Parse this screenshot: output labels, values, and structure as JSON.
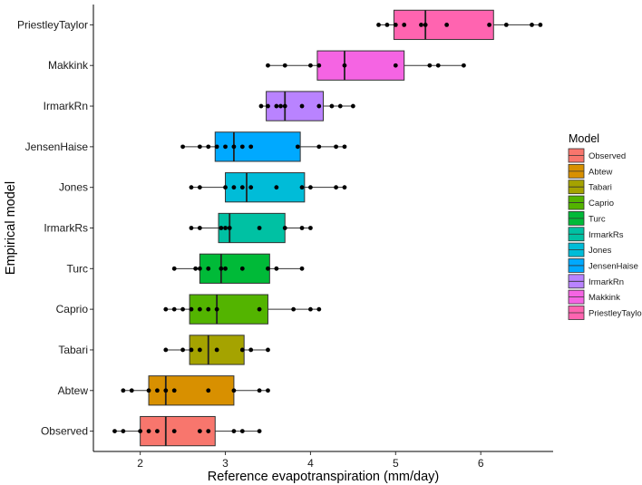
{
  "chart_data": {
    "type": "boxplot",
    "title": "",
    "xlabel": "Reference evapotranspiration (mm/day)",
    "ylabel": "Empirical model",
    "xlim": [
      1.45,
      6.85
    ],
    "x_ticks": [
      2,
      3,
      4,
      5,
      6
    ],
    "grid": false,
    "legend": {
      "title": "Model",
      "position": "right"
    },
    "categories": [
      "PriestleyTaylor",
      "Makkink",
      "IrmarkRn",
      "JensenHaise",
      "Jones",
      "IrmarkRs",
      "Turc",
      "Caprio",
      "Tabari",
      "Abtew",
      "Observed"
    ],
    "legend_order": [
      "Observed",
      "Abtew",
      "Tabari",
      "Caprio",
      "Turc",
      "IrmarkRs",
      "Jones",
      "JensenHaise",
      "IrmarkRn",
      "Makkink",
      "PriestleyTaylor"
    ],
    "series": [
      {
        "name": "PriestleyTaylor",
        "color": "#FF64B0",
        "min": 4.8,
        "q1": 4.98,
        "median": 5.35,
        "q3": 6.15,
        "max": 6.7,
        "points": [
          4.8,
          4.9,
          5.0,
          5.1,
          5.3,
          5.35,
          5.6,
          6.1,
          6.3,
          6.6,
          6.7
        ]
      },
      {
        "name": "Makkink",
        "color": "#F564E3",
        "min": 3.5,
        "q1": 4.08,
        "median": 4.4,
        "q3": 5.1,
        "max": 5.8,
        "points": [
          3.5,
          3.7,
          4.0,
          4.1,
          4.4,
          5.0,
          5.4,
          5.5,
          5.8
        ]
      },
      {
        "name": "IrmarkRn",
        "color": "#B983FF",
        "min": 3.42,
        "q1": 3.48,
        "median": 3.7,
        "q3": 4.15,
        "max": 4.5,
        "points": [
          3.42,
          3.5,
          3.6,
          3.65,
          3.7,
          3.9,
          4.1,
          4.25,
          4.35,
          4.5
        ]
      },
      {
        "name": "JensenHaise",
        "color": "#00A9FF",
        "min": 2.5,
        "q1": 2.88,
        "median": 3.1,
        "q3": 3.88,
        "max": 4.4,
        "points": [
          2.5,
          2.7,
          2.8,
          2.9,
          3.0,
          3.1,
          3.2,
          3.3,
          3.85,
          4.1,
          4.3,
          4.4
        ]
      },
      {
        "name": "Jones",
        "color": "#00BCD8",
        "min": 2.6,
        "q1": 3.0,
        "median": 3.25,
        "q3": 3.93,
        "max": 4.4,
        "points": [
          2.6,
          2.7,
          3.0,
          3.1,
          3.2,
          3.3,
          3.6,
          3.9,
          4.0,
          4.3,
          4.4
        ]
      },
      {
        "name": "IrmarkRs",
        "color": "#00C1A3",
        "min": 2.6,
        "q1": 2.92,
        "median": 3.05,
        "q3": 3.7,
        "max": 4.0,
        "points": [
          2.6,
          2.7,
          2.95,
          3.0,
          3.05,
          3.4,
          3.7,
          3.9,
          4.0
        ]
      },
      {
        "name": "Turc",
        "color": "#00BA38",
        "min": 2.4,
        "q1": 2.7,
        "median": 2.95,
        "q3": 3.52,
        "max": 3.9,
        "points": [
          2.4,
          2.65,
          2.7,
          2.8,
          2.95,
          3.0,
          3.2,
          3.5,
          3.6,
          3.9
        ]
      },
      {
        "name": "Caprio",
        "color": "#53B400",
        "min": 2.3,
        "q1": 2.58,
        "median": 2.9,
        "q3": 3.5,
        "max": 4.1,
        "points": [
          2.3,
          2.4,
          2.5,
          2.6,
          2.7,
          2.8,
          2.9,
          3.4,
          3.8,
          4.0,
          4.1
        ]
      },
      {
        "name": "Tabari",
        "color": "#A58AFF",
        "fill": "#A5A300",
        "min": 2.3,
        "q1": 2.58,
        "median": 2.8,
        "q3": 3.22,
        "max": 3.5,
        "points": [
          2.3,
          2.5,
          2.6,
          2.7,
          2.9,
          3.2,
          3.3,
          3.5
        ]
      },
      {
        "name": "Abtew",
        "color": "#D89000",
        "min": 1.8,
        "q1": 2.1,
        "median": 2.3,
        "q3": 3.1,
        "max": 3.5,
        "points": [
          1.8,
          1.9,
          2.1,
          2.2,
          2.3,
          2.4,
          2.8,
          3.1,
          3.4,
          3.5
        ]
      },
      {
        "name": "Observed",
        "color": "#F8766D",
        "min": 1.7,
        "q1": 2.0,
        "median": 2.3,
        "q3": 2.88,
        "max": 3.4,
        "points": [
          1.7,
          1.8,
          2.0,
          2.1,
          2.2,
          2.4,
          2.7,
          2.8,
          3.1,
          3.2,
          3.4
        ]
      }
    ]
  }
}
